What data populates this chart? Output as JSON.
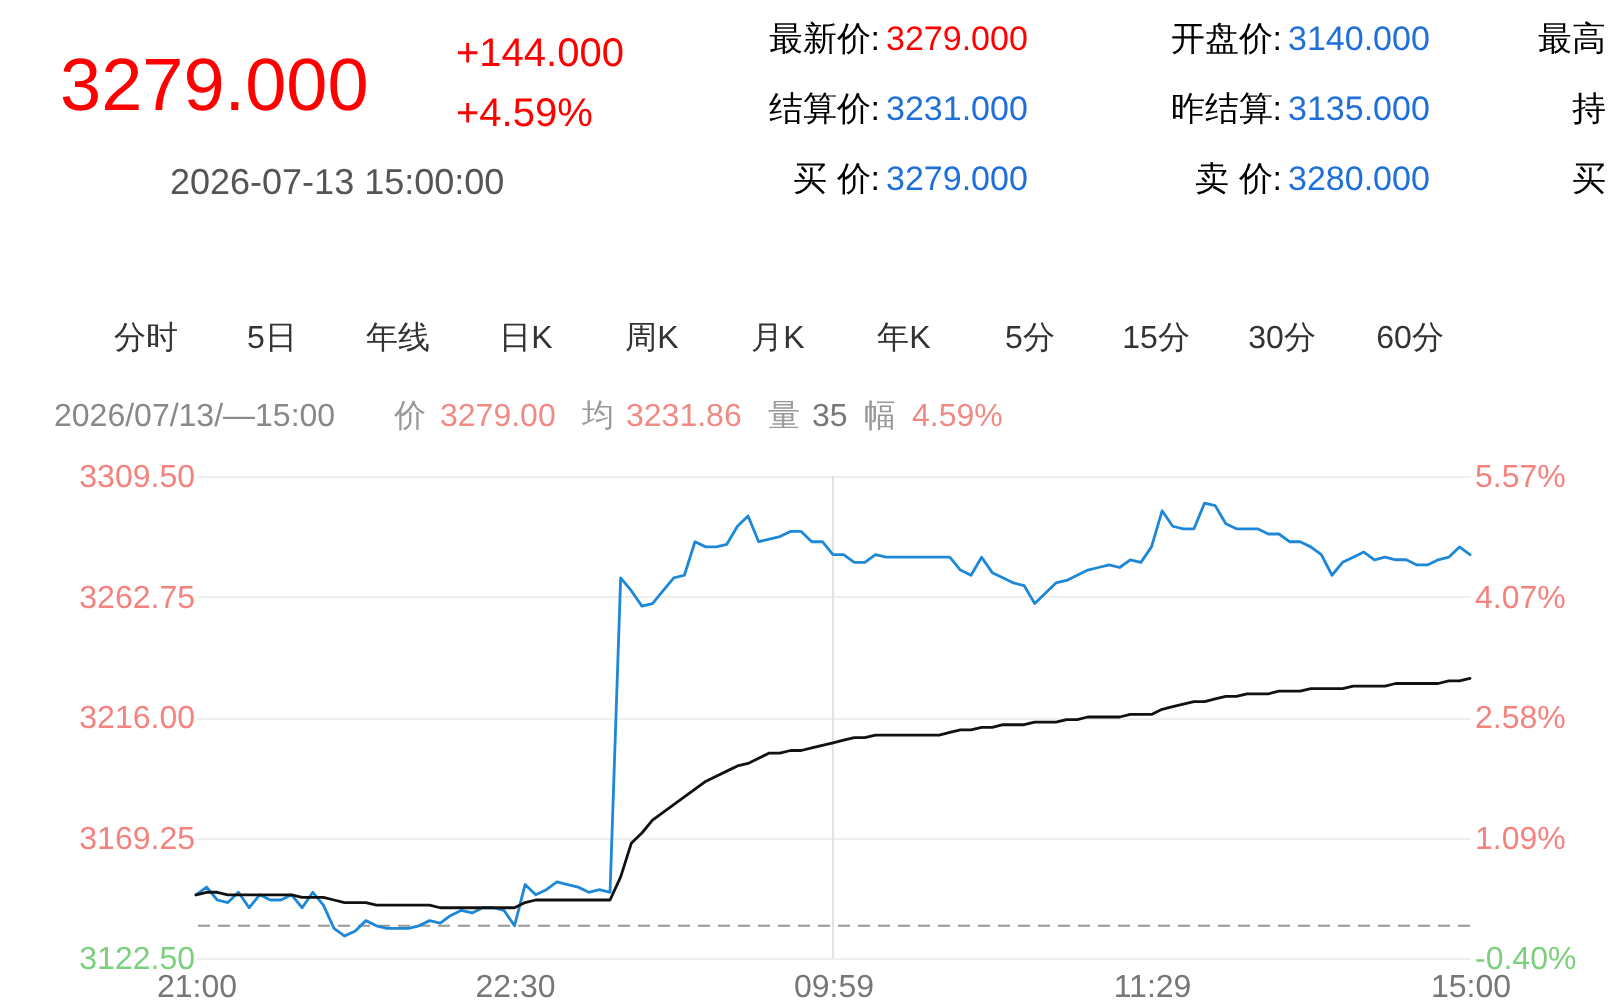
{
  "chart_data": [
    {
      "type": "other",
      "annotations": [
        "3279.000",
        "+144.000",
        "+4.59%",
        "2026-07-13 15:00:00",
        "最新价:",
        "3279.000",
        "开盘价:",
        "3140.000",
        "最高",
        "结算价:",
        "3231.000",
        "昨结算:",
        "3135.000",
        "持",
        "买 价:",
        "3279.000",
        "卖 价:",
        "3280.000",
        "买"
      ]
    },
    {
      "type": "line",
      "annotations": [
        "分时",
        "5日",
        "年线",
        "日K",
        "周K",
        "月K",
        "年K",
        "5分",
        "15分",
        "30分",
        "60分",
        "2026/07/13/—15:00",
        "价",
        "3279.00",
        "均",
        "3231.86",
        "量",
        "35",
        "幅",
        "4.59%"
      ],
      "categories": [
        "21:00",
        null,
        null,
        null,
        null,
        null,
        null,
        null,
        null,
        null,
        null,
        null,
        null,
        null,
        null,
        null,
        null,
        null,
        null,
        null,
        null,
        null,
        null,
        null,
        null,
        null,
        null,
        null,
        null,
        null,
        "22:30",
        null,
        null,
        null,
        null,
        null,
        null,
        null,
        null,
        null,
        null,
        null,
        null,
        null,
        null,
        null,
        null,
        null,
        null,
        null,
        null,
        null,
        null,
        null,
        null,
        null,
        null,
        null,
        null,
        null,
        "09:59",
        null,
        null,
        null,
        null,
        null,
        null,
        null,
        null,
        null,
        null,
        null,
        null,
        null,
        null,
        null,
        null,
        null,
        null,
        null,
        null,
        null,
        null,
        null,
        null,
        null,
        null,
        null,
        null,
        null,
        "11:29",
        null,
        null,
        null,
        null,
        null,
        null,
        null,
        null,
        null,
        null,
        null,
        null,
        null,
        null,
        null,
        null,
        null,
        null,
        null,
        null,
        null,
        null,
        null,
        null,
        null,
        null,
        null,
        null,
        null,
        "15:00"
      ],
      "ylim": [
        3122.5,
        3309.5
      ],
      "yticks": [
        {
          "value": 3122.5,
          "label": "3122.50"
        },
        {
          "value": 3169.25,
          "label": "3169.25"
        },
        {
          "value": 3216,
          "label": "3216.00"
        },
        {
          "value": 3262.75,
          "label": "3262.75"
        },
        {
          "value": 3309.5,
          "label": "3309.50"
        }
      ],
      "y2lim": [
        -0.4,
        5.57
      ],
      "y2ticks": [
        {
          "value": -0.4,
          "label": "-0.40%"
        },
        {
          "value": 1.09,
          "label": "1.09%"
        },
        {
          "value": 2.58,
          "label": "2.58%"
        },
        {
          "value": 4.07,
          "label": "4.07%"
        },
        {
          "value": 5.57,
          "label": "5.57%"
        }
      ],
      "grid": "y",
      "ref_lines": [
        {
          "axis": "y2",
          "value": 0,
          "line_style": "dashed",
          "color": "#999999"
        },
        {
          "axis": "x",
          "value": "09:59",
          "color": "#e2e2e2"
        }
      ],
      "series": [
        {
          "color": "#1e88d8",
          "values": [
            3147,
            3150,
            3145,
            3144,
            3148,
            3142,
            3147,
            3145,
            3145,
            3147,
            3142,
            3148,
            3143,
            3134,
            3131,
            3133,
            3137,
            3135,
            3134,
            3134,
            3134,
            3135,
            3137,
            3136,
            3139,
            3141,
            3140,
            3142,
            3142,
            3141,
            3135,
            3151,
            3147,
            3149,
            3152,
            3151,
            3150,
            3148,
            3149,
            3148,
            3270,
            3265,
            3259,
            3260,
            3265,
            3270,
            3271,
            3284,
            3282,
            3282,
            3283,
            3290,
            3294,
            3284,
            3285,
            3286,
            3288,
            3288,
            3284,
            3284,
            3279,
            3279,
            3276,
            3276,
            3279,
            3278,
            3278,
            3278,
            3278,
            3278,
            3278,
            3278,
            3273,
            3271,
            3278,
            3272,
            3270,
            3268,
            3267,
            3260,
            3264,
            3268,
            3269,
            3271,
            3273,
            3274,
            3275,
            3274,
            3277,
            3276,
            3282,
            3296,
            3290,
            3289,
            3289,
            3299,
            3298,
            3291,
            3289,
            3289,
            3289,
            3287,
            3287,
            3284,
            3284,
            3282,
            3279,
            3271,
            3276,
            3278,
            3280,
            3277,
            3278,
            3277,
            3277,
            3275,
            3275,
            3277,
            3278,
            3282,
            3279
          ]
        },
        {
          "color": "#111111",
          "values": [
            3147,
            3148,
            3148,
            3147,
            3147,
            3147,
            3147,
            3147,
            3147,
            3147,
            3146,
            3146,
            3146,
            3145,
            3144,
            3144,
            3144,
            3143,
            3143,
            3143,
            3143,
            3143,
            3143,
            3142,
            3142,
            3142,
            3142,
            3142,
            3142,
            3142,
            3142,
            3144,
            3145,
            3145,
            3145,
            3145,
            3145,
            3145,
            3145,
            3145,
            3154,
            3167,
            3171,
            3176,
            3179,
            3182,
            3185,
            3188,
            3191,
            3193,
            3195,
            3197,
            3198,
            3200,
            3202,
            3202,
            3203,
            3203,
            3204,
            3205,
            3206,
            3207,
            3208,
            3208,
            3209,
            3209,
            3209,
            3209,
            3209,
            3209,
            3209,
            3210,
            3211,
            3211,
            3212,
            3212,
            3213,
            3213,
            3213,
            3214,
            3214,
            3214,
            3215,
            3215,
            3216,
            3216,
            3216,
            3216,
            3217,
            3217,
            3217,
            3219,
            3220,
            3221,
            3222,
            3222,
            3223,
            3224,
            3224,
            3225,
            3225,
            3225,
            3226,
            3226,
            3226,
            3227,
            3227,
            3227,
            3227,
            3228,
            3228,
            3228,
            3228,
            3229,
            3229,
            3229,
            3229,
            3229,
            3230,
            3230,
            3231
          ]
        }
      ]
    }
  ]
}
